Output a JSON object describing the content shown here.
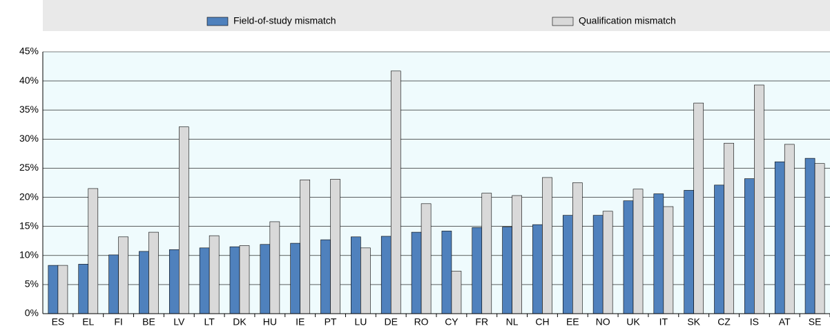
{
  "chart_data": {
    "type": "bar",
    "categories": [
      "ES",
      "EL",
      "FI",
      "BE",
      "LV",
      "LT",
      "DK",
      "HU",
      "IE",
      "PT",
      "LU",
      "DE",
      "RO",
      "CY",
      "FR",
      "NL",
      "CH",
      "EE",
      "NO",
      "UK",
      "IT",
      "SK",
      "CZ",
      "IS",
      "AT",
      "SE"
    ],
    "series": [
      {
        "name": "Field-of-study mismatch",
        "color": "#4f81bd",
        "values": [
          8.3,
          8.5,
          10.1,
          10.7,
          11.0,
          11.3,
          11.5,
          11.9,
          12.1,
          12.7,
          13.2,
          13.3,
          14.0,
          14.2,
          14.8,
          14.9,
          15.3,
          16.9,
          16.9,
          19.4,
          20.6,
          21.2,
          22.1,
          23.2,
          26.1,
          26.7
        ]
      },
      {
        "name": "Qualification mismatch",
        "color": "#d9d9d9",
        "values": [
          8.3,
          21.5,
          13.2,
          14.0,
          32.1,
          13.4,
          11.7,
          15.8,
          23.0,
          23.1,
          11.3,
          41.7,
          18.9,
          7.3,
          20.7,
          20.3,
          23.4,
          22.5,
          17.6,
          21.4,
          18.4,
          36.2,
          29.3,
          39.3,
          29.1,
          25.8
        ]
      }
    ],
    "ylim": [
      0,
      45
    ],
    "yticks": [
      {
        "value": 0,
        "label": "0%"
      },
      {
        "value": 5,
        "label": "5%"
      },
      {
        "value": 10,
        "label": "10%"
      },
      {
        "value": 15,
        "label": "15%"
      },
      {
        "value": 20,
        "label": "20%"
      },
      {
        "value": 25,
        "label": "25%"
      },
      {
        "value": 30,
        "label": "30%"
      },
      {
        "value": 35,
        "label": "35%"
      },
      {
        "value": 40,
        "label": "40%"
      },
      {
        "value": 45,
        "label": "45%"
      }
    ],
    "grid": true
  }
}
